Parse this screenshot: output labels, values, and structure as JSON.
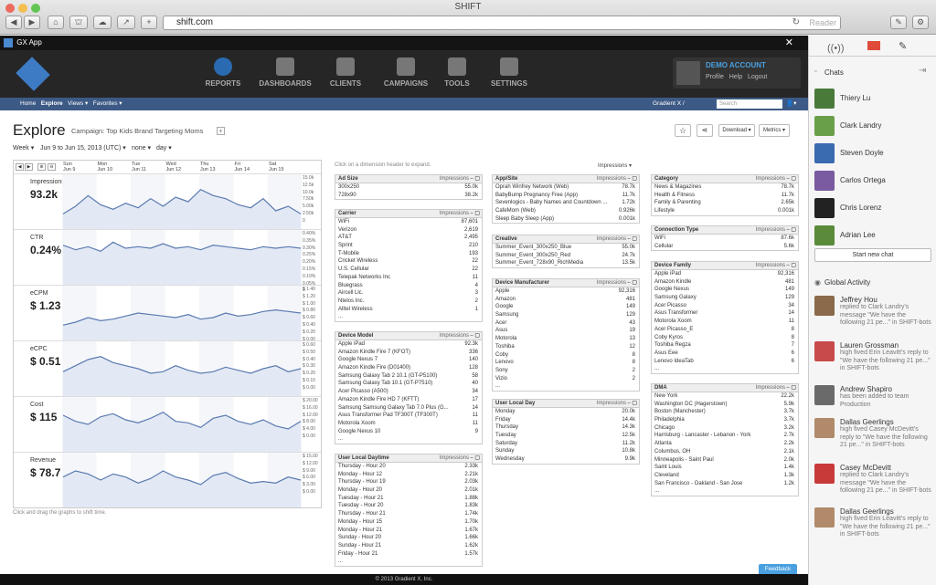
{
  "browser": {
    "title": "SHIFT",
    "url": "shift.com",
    "reader": "Reader"
  },
  "app": {
    "name": "GX App"
  },
  "nav": {
    "items": [
      {
        "label": "REPORTS",
        "icon": "gauge-icon"
      },
      {
        "label": "DASHBOARDS",
        "icon": "sliders-icon"
      },
      {
        "label": "CLIENTS",
        "icon": "cabinet-icon"
      },
      {
        "label": "CAMPAIGNS",
        "icon": "inbox-icon"
      },
      {
        "label": "TOOLS",
        "icon": "wrench-icon"
      },
      {
        "label": "SETTINGS",
        "icon": "gear-icon"
      }
    ],
    "account": {
      "title": "DEMO ACCOUNT",
      "links": [
        "Profile",
        "Help",
        "Logout"
      ]
    }
  },
  "subnav": {
    "items": [
      "Home",
      "Explore",
      "Views ▾",
      "Favorites ▾"
    ],
    "org": "Gradient X /",
    "search_placeholder": "Search"
  },
  "explore": {
    "title": "Explore",
    "campaign": "Campaign: Top Kids Brand Targeting Moms",
    "plus": "+",
    "period": "Week ▾",
    "range": "Jun 9 to Jun 15, 2013 (UTC) ▾",
    "compare": "none ▾",
    "gran": "day ▾",
    "buttons": {
      "star": "☆",
      "share": "⋖",
      "download": "Download ▾",
      "metrics": "Metrics ▾"
    },
    "hint": "Click on a dimension header to expand.",
    "impressions_select": "Impressions ▾",
    "graph_hint": "Click and drag the graphs to shift time.",
    "days": [
      {
        "d": "Sun",
        "n": "Jun 9"
      },
      {
        "d": "Mon",
        "n": "Jun 10"
      },
      {
        "d": "Tue",
        "n": "Jun 11"
      },
      {
        "d": "Wed",
        "n": "Jun 12"
      },
      {
        "d": "Thu",
        "n": "Jun 13"
      },
      {
        "d": "Fri",
        "n": "Jun 14"
      },
      {
        "d": "Sat",
        "n": "Jun 15"
      }
    ],
    "graphs": [
      {
        "label": "Impressions",
        "value": "93.2k",
        "axis": [
          "15.0k",
          "12.5k",
          "10.0k",
          "7.50k",
          "5.00k",
          "2.50k",
          "0"
        ],
        "series": [
          1.0,
          1.5,
          2.2,
          1.6,
          1.3,
          1.7,
          1.4,
          2.0,
          1.5,
          2.1,
          1.8,
          2.6,
          2.2,
          2.0,
          1.6,
          1.4,
          2.0,
          1.2,
          1.5,
          1.0
        ]
      },
      {
        "label": "CTR",
        "value": "0.24%",
        "axis": [
          "0.40%",
          "0.35%",
          "0.30%",
          "0.25%",
          "0.20%",
          "0.15%",
          "0.10%",
          "0.05%",
          "0"
        ],
        "series": [
          2.6,
          2.3,
          2.5,
          2.2,
          2.8,
          2.4,
          2.5,
          2.4,
          2.7,
          2.4,
          2.5,
          2.3,
          2.6,
          2.5,
          2.4,
          2.3,
          2.5,
          2.4,
          2.5,
          2.4
        ]
      },
      {
        "label": "eCPM",
        "value": "$ 1.23",
        "axis": [
          "$ 1.40",
          "$ 1.20",
          "$ 1.00",
          "$ 0.80",
          "$ 0.60",
          "$ 0.40",
          "$ 0.20",
          "$ 0.00"
        ],
        "series": [
          1.0,
          1.2,
          1.5,
          1.3,
          1.4,
          1.6,
          1.8,
          1.7,
          1.6,
          1.5,
          1.7,
          1.4,
          1.5,
          1.8,
          1.6,
          1.7,
          1.9,
          2.0,
          1.9,
          1.8
        ]
      },
      {
        "label": "eCPC",
        "value": "$ 0.51",
        "axis": [
          "$ 0.60",
          "$ 0.50",
          "$ 0.40",
          "$ 0.30",
          "$ 0.20",
          "$ 0.10",
          "$ 0.00"
        ],
        "series": [
          1.6,
          2.0,
          2.4,
          2.6,
          2.2,
          2.0,
          1.8,
          1.5,
          1.6,
          2.0,
          1.7,
          1.5,
          1.6,
          1.9,
          1.7,
          1.5,
          1.8,
          2.0,
          1.6,
          1.8
        ]
      },
      {
        "label": "Cost",
        "value": "$ 115",
        "axis": [
          "$ 20.00",
          "$ 16.00",
          "$ 12.00",
          "$ 8.00",
          "$ 4.00",
          "$ 0.00"
        ],
        "series": [
          2.4,
          2.0,
          1.8,
          2.3,
          2.5,
          2.1,
          1.9,
          2.2,
          2.6,
          2.0,
          1.9,
          1.6,
          2.2,
          2.4,
          2.0,
          1.8,
          2.1,
          1.7,
          1.5,
          2.0
        ]
      },
      {
        "label": "Revenue",
        "value": "$ 78.7",
        "axis": [
          "$ 15.00",
          "$ 12.00",
          "$ 9.00",
          "$ 6.00",
          "$ 3.00",
          "$ 0.00"
        ],
        "series": [
          2.0,
          2.4,
          2.2,
          1.8,
          2.2,
          2.0,
          1.6,
          1.9,
          2.4,
          2.0,
          1.8,
          1.5,
          2.1,
          2.3,
          1.9,
          1.6,
          1.7,
          1.6,
          2.0,
          1.8
        ]
      }
    ],
    "panels": [
      {
        "title": "Ad Size",
        "rows": [
          [
            "300x250",
            "55.0k"
          ],
          [
            "728x90",
            "38.2k"
          ]
        ]
      },
      {
        "title": "Carrier",
        "rows": [
          [
            "WiFi",
            "87,601"
          ],
          [
            "Verizon",
            "2,619"
          ],
          [
            "AT&T",
            "2,495"
          ],
          [
            "Sprint",
            "210"
          ],
          [
            "T-Mobile",
            "193"
          ],
          [
            "Cricket Wireless",
            "22"
          ],
          [
            "U.S. Cellular",
            "22"
          ],
          [
            "Telepak Networks Inc",
            "11"
          ],
          [
            "Bluegrass",
            "4"
          ],
          [
            "Aircell Llc.",
            "3"
          ],
          [
            "Ntelos Inc.",
            "2"
          ],
          [
            "Alltel Wireless",
            "1"
          ]
        ],
        "more": "..."
      },
      {
        "title": "Device Model",
        "rows": [
          [
            "Apple iPad",
            "92.3k"
          ],
          [
            "Amazon Kindle Fire 7 (KFOT)",
            "336"
          ],
          [
            "Google Nexus 7",
            "140"
          ],
          [
            "Amazon Kindle Fire (D01400)",
            "128"
          ],
          [
            "Samsung Galaxy Tab 2 10.1 (GT-P5100)",
            "58"
          ],
          [
            "Samsung Galaxy Tab 10.1 (GT-P7510)",
            "40"
          ],
          [
            "Acer Picasso (A500)",
            "34"
          ],
          [
            "Amazon Kindle Fire HD 7 (KFTT)",
            "17"
          ],
          [
            "Samsung Samsung Galaxy Tab 7.0 Plus (G...",
            "14"
          ],
          [
            "Asus Transformer Pad TF300T (TF300T)",
            "11"
          ],
          [
            "Motorola Xoom",
            "11"
          ],
          [
            "Google Nexus 10",
            "9"
          ]
        ],
        "more": "..."
      },
      {
        "title": "User Local Daytime",
        "rows": [
          [
            "Thursday - Hour 20",
            "2.33k"
          ],
          [
            "Monday - Hour 12",
            "2.21k"
          ],
          [
            "Thursday - Hour 19",
            "2.03k"
          ],
          [
            "Monday - Hour 20",
            "2.01k"
          ],
          [
            "Tuesday - Hour 21",
            "1.88k"
          ],
          [
            "Tuesday - Hour 20",
            "1.83k"
          ],
          [
            "Thursday - Hour 21",
            "1.74k"
          ],
          [
            "Monday - Hour 15",
            "1.70k"
          ],
          [
            "Monday - Hour 21",
            "1.67k"
          ],
          [
            "Sunday - Hour 20",
            "1.66k"
          ],
          [
            "Sunday - Hour 21",
            "1.62k"
          ],
          [
            "Friday - Hour 21",
            "1.57k"
          ]
        ],
        "more": "..."
      },
      {
        "title": "App/Site",
        "rows": [
          [
            "Oprah Winfrey Network (Web)",
            "78.7k"
          ],
          [
            "BabyBump Pregnancy Free (App)",
            "11.7k"
          ],
          [
            "Sevenlogics - Baby Names and Countdown ...",
            "1.72k"
          ],
          [
            "CafeMom (Web)",
            "0.926k"
          ],
          [
            "Sleep Baby Sleep (App)",
            "0.001k"
          ]
        ]
      },
      {
        "title": "Creative",
        "rows": [
          [
            "Summer_Event_300x250_Blue",
            "55.0k"
          ],
          [
            "Summer_Event_300x250_Red",
            "24.7k"
          ],
          [
            "Summer_Event_728x90_RichMedia",
            "13.5k"
          ]
        ]
      },
      {
        "title": "Device Manufacturer",
        "rows": [
          [
            "Apple",
            "92,316"
          ],
          [
            "Amazon",
            "481"
          ],
          [
            "Google",
            "149"
          ],
          [
            "Samsung",
            "129"
          ],
          [
            "Acer",
            "43"
          ],
          [
            "Asus",
            "19"
          ],
          [
            "Motorola",
            "13"
          ],
          [
            "Toshiba",
            "12"
          ],
          [
            "Coby",
            "8"
          ],
          [
            "Lenovo",
            "8"
          ],
          [
            "Sony",
            "2"
          ],
          [
            "Vizio",
            "2"
          ]
        ],
        "more": "..."
      },
      {
        "title": "User Local Day",
        "rows": [
          [
            "Monday",
            "20.0k"
          ],
          [
            "Friday",
            "14.4k"
          ],
          [
            "Thursday",
            "14.3k"
          ],
          [
            "Tuesday",
            "12.5k"
          ],
          [
            "Saturday",
            "11.2k"
          ],
          [
            "Sunday",
            "10.8k"
          ],
          [
            "Wednesday",
            "9.9k"
          ]
        ]
      },
      {
        "title": "Category",
        "rows": [
          [
            "News & Magazines",
            "78.7k"
          ],
          [
            "Health & Fitness",
            "11.7k"
          ],
          [
            "Family & Parenting",
            "2.65k"
          ],
          [
            "Lifestyle",
            "0.001k"
          ]
        ]
      },
      {
        "title": "Connection Type",
        "rows": [
          [
            "WiFi",
            "87.6k"
          ],
          [
            "Cellular",
            "5.6k"
          ]
        ]
      },
      {
        "title": "Device Family",
        "rows": [
          [
            "Apple iPad",
            "92,316"
          ],
          [
            "Amazon Kindle",
            "481"
          ],
          [
            "Google Nexus",
            "149"
          ],
          [
            "Samsung Galaxy",
            "129"
          ],
          [
            "Acer Picasso",
            "34"
          ],
          [
            "Asus Transformer",
            "14"
          ],
          [
            "Motorola Xoom",
            "11"
          ],
          [
            "Acer Picasso_E",
            "8"
          ],
          [
            "Coby Kyros",
            "8"
          ],
          [
            "Toshiba Regza",
            "7"
          ],
          [
            "Asus Eee",
            "6"
          ],
          [
            "Lenovo IdeaTab",
            "6"
          ]
        ],
        "more": "..."
      },
      {
        "title": "DMA",
        "rows": [
          [
            "New York",
            "22.2k"
          ],
          [
            "Washington DC (Hagerstown)",
            "5.9k"
          ],
          [
            "Boston (Manchester)",
            "3.7k"
          ],
          [
            "Philadelphia",
            "3.7k"
          ],
          [
            "Chicago",
            "3.2k"
          ],
          [
            "Harrisburg - Lancaster - Lebanon - York",
            "2.7k"
          ],
          [
            "Atlanta",
            "2.2k"
          ],
          [
            "Columbus, OH",
            "2.1k"
          ],
          [
            "Minneapolis - Saint Paul",
            "2.0k"
          ],
          [
            "Saint Louis",
            "1.4k"
          ],
          [
            "Cleveland",
            "1.3k"
          ],
          [
            "San Francisco - Oakland - San Jose",
            "1.2k"
          ]
        ],
        "more": "..."
      }
    ],
    "impressions_label": "Impressions",
    "feedback": "Feedback",
    "footer": "© 2013 Gradient X, Inc."
  },
  "rpanel": {
    "chats_title": "Chats",
    "chats": [
      {
        "name": "Thiery Lu",
        "color": "#4a7a3a"
      },
      {
        "name": "Clark Landry",
        "color": "#6a9f4a"
      },
      {
        "name": "Steven Doyle",
        "color": "#3a6ab0"
      },
      {
        "name": "Carlos Ortega",
        "color": "#7a5aa0"
      },
      {
        "name": "Chris Lorenz",
        "color": "#222222"
      },
      {
        "name": "Adrian Lee",
        "color": "#5a8a3a"
      }
    ],
    "new_chat": "Start new chat",
    "activity_title": "Global Activity",
    "activity": [
      {
        "name": "Jeffrey Hou",
        "text": "replied to Clark Landry's message \"We have the following 21 pe...\" in SHIFT-bots",
        "color": "#8a6a4a"
      },
      {
        "name": "Lauren Grossman",
        "text": "high fived Erin Leavitt's reply to \"We have the following 21 pe...\" in SHIFT-bots",
        "color": "#c84a4a"
      },
      {
        "name": "Andrew Shapiro",
        "text": "has been added to team Production",
        "color": "#6a6a6a"
      },
      {
        "name": "Dallas Geerlings",
        "text": "high fived Casey McDevitt's reply to \"We have the following 21 pe...\" in SHIFT-bots",
        "color": "#b08a6a"
      },
      {
        "name": "Casey McDevitt",
        "text": "replied to Clark Landry's message \"We have the following 21 pe...\" in SHIFT-bots",
        "color": "#c83a3a"
      },
      {
        "name": "Dallas Geerlings",
        "text": "high fived Erin Leavitt's reply to \"We have the following 21 pe...\" in SHIFT-bots",
        "color": "#b08a6a"
      }
    ]
  }
}
